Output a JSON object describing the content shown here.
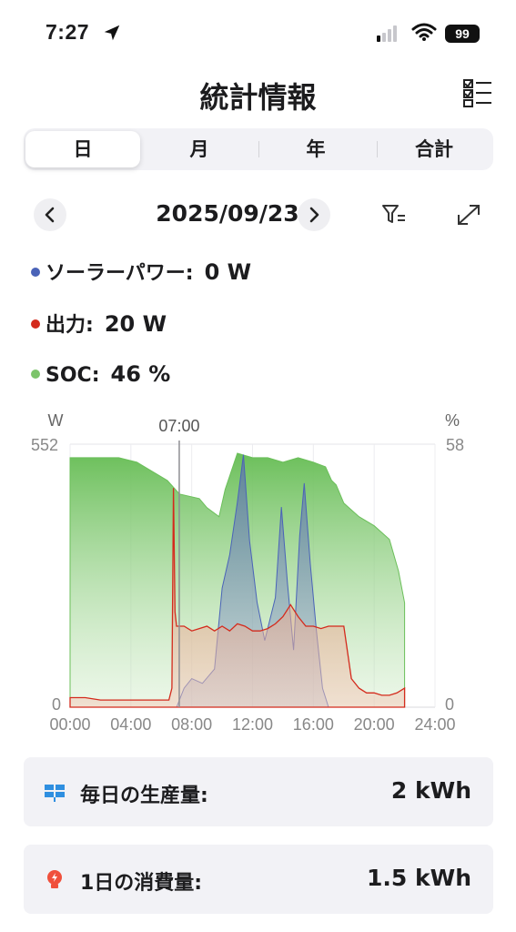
{
  "status": {
    "time": "7:27",
    "battery": "99"
  },
  "header": {
    "title": "統計情報"
  },
  "tabs": [
    {
      "label": "日"
    },
    {
      "label": "月"
    },
    {
      "label": "年"
    },
    {
      "label": "合計"
    }
  ],
  "date": {
    "label": "2025/09/23"
  },
  "legend": {
    "solar": {
      "label": "ソーラーパワー:",
      "value": "0 W"
    },
    "output": {
      "label": "出力:",
      "value": "20 W"
    },
    "soc": {
      "label": "SOC:",
      "value": "46 %"
    }
  },
  "colors": {
    "solar": "#4a63b8",
    "output": "#d42a1c",
    "soc": "#7cc46a"
  },
  "chart_data": {
    "type": "area",
    "xlabel": "",
    "ylabel_left": "W",
    "ylabel_right": "%",
    "y_left_range": [
      0,
      552
    ],
    "y_right_range": [
      0,
      58
    ],
    "y_left_ticks": [
      "552",
      "0"
    ],
    "y_right_ticks": [
      "58",
      "0"
    ],
    "x_range": [
      0,
      24
    ],
    "x_ticks": [
      "00:00",
      "04:00",
      "08:00",
      "12:00",
      "16:00",
      "20:00",
      "24:00"
    ],
    "cursor": {
      "label": "07:00",
      "x": 7
    },
    "grid": true,
    "series": [
      {
        "name": "SOC",
        "axis": "right",
        "x": [
          0,
          3.2,
          4.4,
          6.4,
          7.2,
          8.5,
          9.0,
          9.8,
          10.2,
          11.0,
          12.0,
          13.0,
          14.0,
          15.0,
          16.0,
          16.8,
          17.2,
          17.5,
          18.0,
          19.0,
          20.0,
          21.0,
          21.6,
          22.0
        ],
        "y": [
          55,
          55,
          54,
          50,
          47,
          46,
          44,
          42,
          48,
          56,
          55,
          55,
          54,
          55,
          54,
          53,
          50,
          49,
          45,
          42,
          40,
          37,
          30,
          23
        ]
      },
      {
        "name": "ソーラーパワー",
        "axis": "left",
        "x": [
          0,
          7.0,
          7.5,
          8.0,
          8.7,
          9.5,
          10.0,
          10.5,
          11.0,
          11.4,
          11.8,
          12.3,
          12.8,
          13.5,
          13.9,
          14.3,
          14.7,
          15.1,
          15.4,
          15.8,
          16.2,
          16.6,
          17.0,
          17.5,
          22.0
        ],
        "y": [
          0,
          0,
          40,
          60,
          50,
          80,
          250,
          320,
          430,
          530,
          350,
          220,
          140,
          230,
          420,
          260,
          120,
          360,
          470,
          300,
          160,
          40,
          0,
          0,
          0
        ]
      },
      {
        "name": "出力",
        "axis": "left",
        "x": [
          0,
          1,
          2,
          3,
          4,
          4.5,
          5,
          5.5,
          6,
          6.5,
          6.7,
          6.8,
          6.9,
          7.0,
          7.5,
          8.0,
          8.5,
          9.0,
          9.5,
          10.0,
          10.5,
          11.0,
          11.5,
          12.0,
          12.5,
          13.0,
          13.5,
          14.0,
          14.5,
          15.0,
          15.5,
          16.0,
          16.5,
          17.0,
          17.5,
          18.0,
          18.5,
          19.0,
          19.5,
          20.0,
          20.5,
          21.0,
          21.5,
          22.0
        ],
        "y": [
          20,
          20,
          15,
          15,
          15,
          15,
          15,
          15,
          15,
          15,
          40,
          460,
          200,
          170,
          170,
          160,
          165,
          170,
          160,
          170,
          160,
          175,
          170,
          160,
          160,
          165,
          175,
          190,
          215,
          190,
          170,
          170,
          165,
          170,
          170,
          170,
          60,
          40,
          30,
          30,
          25,
          25,
          30,
          40
        ]
      }
    ]
  },
  "cards": [
    {
      "label": "毎日の生産量:",
      "value": "2 kWh",
      "icon": "solar-panel-icon"
    },
    {
      "label": "1日の消費量:",
      "value": "1.5 kWh",
      "icon": "bulb-icon"
    }
  ]
}
